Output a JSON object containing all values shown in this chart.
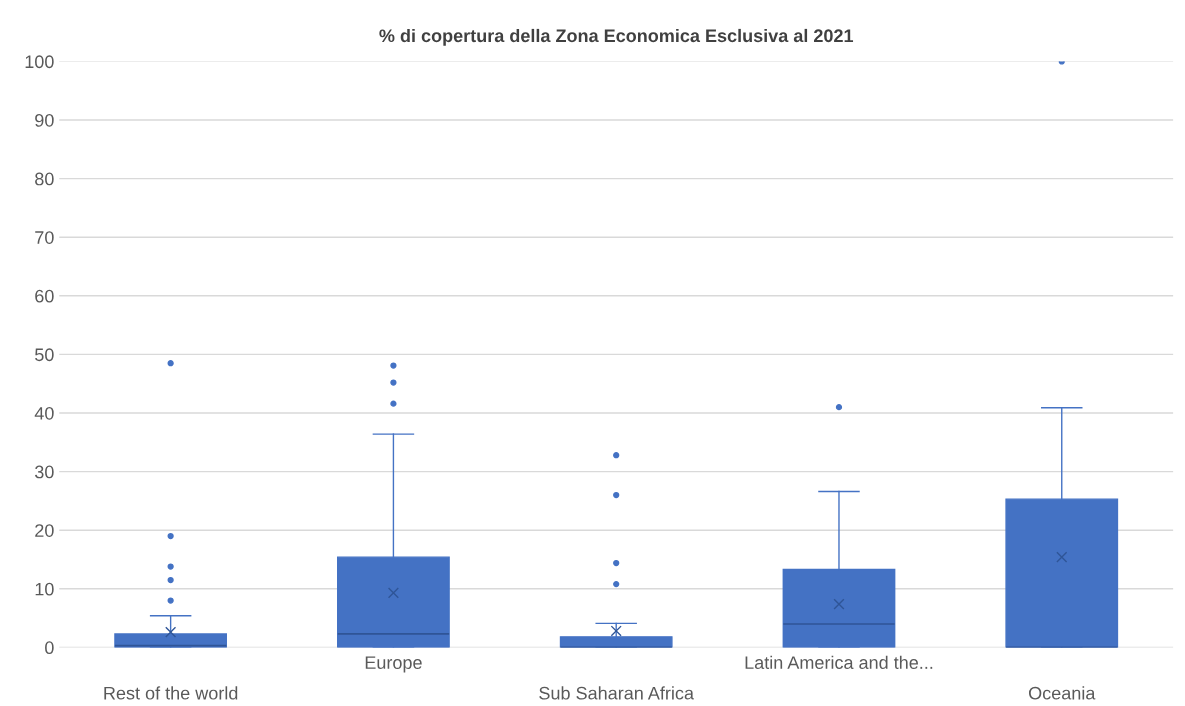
{
  "chart_data": {
    "type": "box",
    "title": "% di copertura della Zona Economica Esclusiva al 2021",
    "categories": [
      "Rest of the world",
      "Europe",
      "Sub Saharan Africa",
      "Latin America and the...",
      "Oceania"
    ],
    "boxes": [
      {
        "low": 0,
        "q1": 0,
        "median": 0.3,
        "q3": 2.3,
        "high": 5.4,
        "mean": 2.6,
        "outliers": [
          8.0,
          11.5,
          13.8,
          19.0,
          48.5
        ]
      },
      {
        "low": 0,
        "q1": 0,
        "median": 2.3,
        "q3": 15.4,
        "high": 36.4,
        "mean": 9.3,
        "outliers": [
          41.6,
          45.2,
          48.1
        ]
      },
      {
        "low": 0,
        "q1": 0,
        "median": 0,
        "q3": 1.8,
        "high": 4.1,
        "mean": 2.8,
        "outliers": [
          10.8,
          14.4,
          26.0,
          32.8
        ]
      },
      {
        "low": 0,
        "q1": 0,
        "median": 4.0,
        "q3": 13.3,
        "high": 26.6,
        "mean": 7.4,
        "outliers": [
          41.0
        ]
      },
      {
        "low": 0,
        "q1": 0,
        "median": 0,
        "q3": 25.3,
        "high": 40.9,
        "mean": 15.4,
        "outliers": [
          100
        ]
      }
    ],
    "color": "#4472c4",
    "ylim": [
      0,
      100
    ],
    "yticks": [
      0,
      10,
      20,
      30,
      40,
      50,
      60,
      70,
      80,
      90,
      100
    ],
    "grid": "y",
    "legend": false
  }
}
